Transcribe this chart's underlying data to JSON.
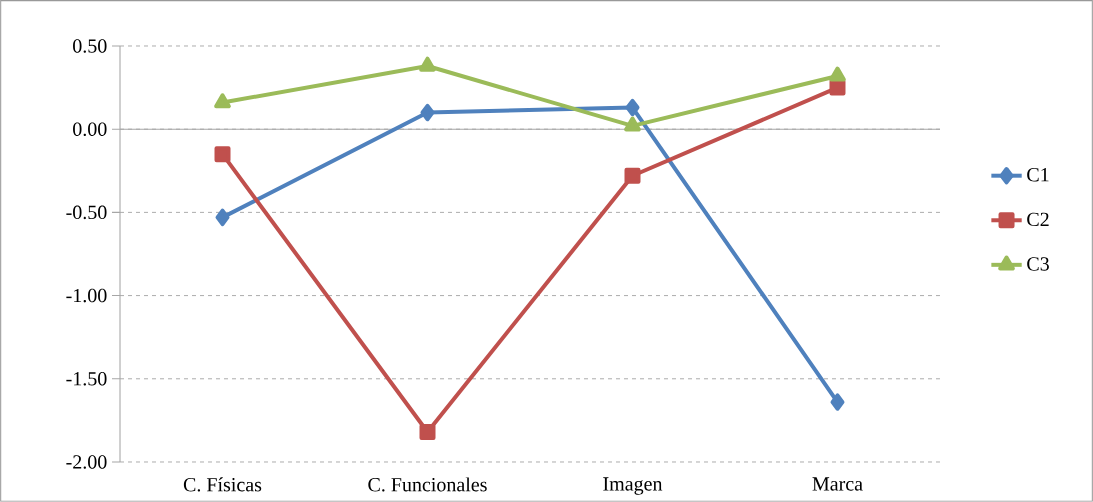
{
  "chart_data": {
    "type": "line",
    "categories": [
      "C. Físicas",
      "C. Funcionales",
      "Imagen",
      "Marca"
    ],
    "series": [
      {
        "name": "C1",
        "color": "#4f81bd",
        "marker": "diamond",
        "values": [
          -0.53,
          0.1,
          0.13,
          -1.64
        ]
      },
      {
        "name": "C2",
        "color": "#c0504d",
        "marker": "square",
        "values": [
          -0.15,
          -1.82,
          -0.28,
          0.25
        ]
      },
      {
        "name": "C3",
        "color": "#9bbb59",
        "marker": "triangle",
        "values": [
          0.16,
          0.38,
          0.02,
          0.32
        ]
      }
    ],
    "ylim": [
      -2.0,
      0.5
    ],
    "yticks": [
      {
        "value": -2.0,
        "label": "-2.00"
      },
      {
        "value": -1.5,
        "label": "-1.50"
      },
      {
        "value": -1.0,
        "label": "-1.00"
      },
      {
        "value": -0.5,
        "label": "-0.50"
      },
      {
        "value": 0.0,
        "label": "0.00"
      },
      {
        "value": 0.5,
        "label": "0.50"
      }
    ],
    "grid": "y",
    "legend": "right",
    "line_style": "solid"
  }
}
